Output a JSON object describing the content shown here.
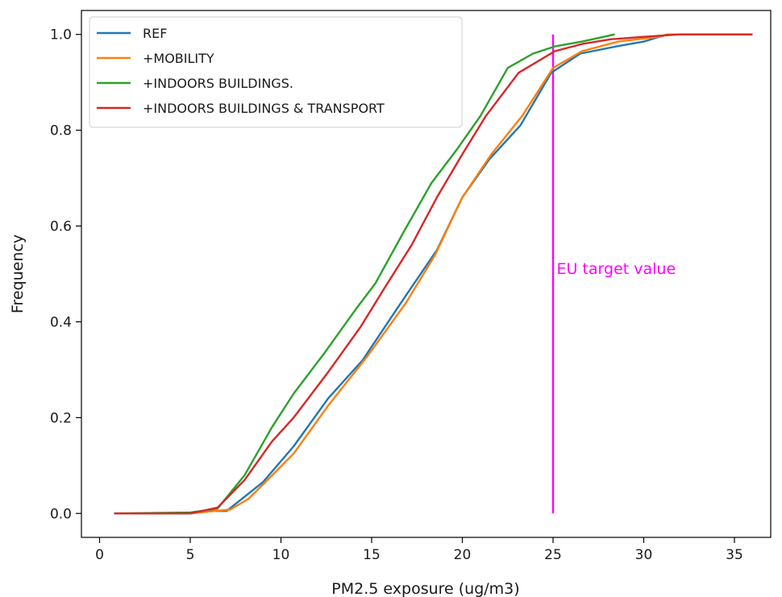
{
  "chart_data": {
    "type": "line",
    "title": "",
    "xlabel": "PM2.5 exposure (ug/m3)",
    "ylabel": "Frequency",
    "xlim": [
      -1,
      37
    ],
    "ylim": [
      -0.05,
      1.05
    ],
    "xticks": [
      0,
      5,
      10,
      15,
      20,
      25,
      30,
      35
    ],
    "yticks": [
      0.0,
      0.2,
      0.4,
      0.6,
      0.8,
      1.0
    ],
    "xtick_labels": [
      "0",
      "5",
      "10",
      "15",
      "20",
      "25",
      "30",
      "35"
    ],
    "ytick_labels": [
      "0.0",
      "0.2",
      "0.4",
      "0.6",
      "0.8",
      "1.0"
    ],
    "grid": false,
    "legend_position": "top-left",
    "series": [
      {
        "name": "REF",
        "color": "#1f77b4",
        "x": [
          0.8,
          4.8,
          6.3,
          7.0,
          9.0,
          10.7,
          12.6,
          14.5,
          16.8,
          18.6,
          20.0,
          21.5,
          23.2,
          24.9,
          26.5,
          28.5,
          30.0,
          31.3,
          33.5,
          36.0
        ],
        "y": [
          0.0,
          0.0,
          0.005,
          0.005,
          0.065,
          0.14,
          0.24,
          0.32,
          0.45,
          0.55,
          0.66,
          0.74,
          0.81,
          0.92,
          0.96,
          0.975,
          0.985,
          1.0,
          1.0,
          1.0
        ]
      },
      {
        "name": "+MOBILITY",
        "color": "#ff7f0e",
        "x": [
          0.8,
          5.0,
          6.3,
          7.2,
          8.2,
          9.0,
          10.7,
          12.6,
          14.8,
          16.9,
          18.5,
          20.0,
          21.6,
          23.3,
          25.0,
          26.6,
          28.6,
          30.8,
          31.3,
          33.5,
          36.0
        ],
        "y": [
          0.0,
          0.0,
          0.005,
          0.008,
          0.03,
          0.06,
          0.125,
          0.225,
          0.33,
          0.44,
          0.54,
          0.66,
          0.75,
          0.83,
          0.93,
          0.965,
          0.985,
          0.995,
          1.0,
          1.0,
          1.0
        ]
      },
      {
        "name": "+INDOORS BUILDINGS.",
        "color": "#2ca02c",
        "x": [
          0.8,
          5.0,
          6.5,
          8.0,
          9.5,
          10.7,
          12.4,
          14.2,
          15.2,
          16.8,
          18.3,
          19.7,
          21.0,
          22.5,
          23.9,
          25.1,
          26.6,
          28.4
        ],
        "y": [
          0.0,
          0.002,
          0.01,
          0.08,
          0.18,
          0.25,
          0.335,
          0.43,
          0.48,
          0.59,
          0.69,
          0.76,
          0.83,
          0.93,
          0.96,
          0.975,
          0.985,
          1.0
        ]
      },
      {
        "name": "+INDOORS BUILDINGS & TRANSPORT",
        "color": "#d62728",
        "x": [
          0.8,
          5.0,
          6.5,
          8.0,
          9.5,
          10.7,
          12.5,
          14.4,
          15.7,
          17.2,
          18.6,
          20.0,
          21.3,
          23.1,
          25.1,
          26.6,
          28.2,
          30.0,
          32.0,
          36.0
        ],
        "y": [
          0.0,
          0.0,
          0.012,
          0.07,
          0.15,
          0.2,
          0.29,
          0.39,
          0.47,
          0.56,
          0.66,
          0.75,
          0.83,
          0.92,
          0.965,
          0.98,
          0.99,
          0.995,
          1.0,
          1.0
        ]
      }
    ],
    "annotations": [
      {
        "type": "vline",
        "x": 25,
        "y_from": 0.0,
        "y_to": 1.0,
        "color": "#ff00ff",
        "text": "EU target value",
        "text_x": 25.2,
        "text_y": 0.51
      }
    ]
  }
}
